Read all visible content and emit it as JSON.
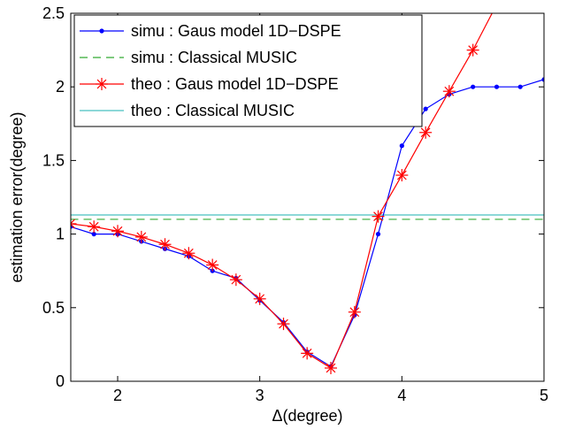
{
  "chart_data": {
    "type": "line",
    "xlabel": "Δ(degree)",
    "ylabel": "estimation error(degree)",
    "xlim": [
      1.67,
      5
    ],
    "ylim": [
      0,
      2.5
    ],
    "x_ticks": [
      "2",
      "3",
      "4",
      "5"
    ],
    "y_ticks": [
      "0",
      "0.5",
      "1",
      "1.5",
      "2",
      "2.5"
    ],
    "grid": false,
    "legend_position": "top-left",
    "series": [
      {
        "name": "simu : Gaus model 1D−DSPE",
        "color": "#0000ff",
        "style": "solid-dot",
        "x": [
          1.667,
          1.833,
          2.0,
          2.167,
          2.333,
          2.5,
          2.667,
          2.833,
          3.0,
          3.167,
          3.333,
          3.5,
          3.667,
          3.833,
          4.0,
          4.167,
          4.333,
          4.5,
          4.667,
          4.833,
          5.0
        ],
        "y": [
          1.05,
          1.0,
          1.0,
          0.95,
          0.9,
          0.85,
          0.75,
          0.7,
          0.55,
          0.4,
          0.2,
          0.1,
          0.45,
          1.0,
          1.6,
          1.85,
          1.95,
          2.0,
          2.0,
          2.0,
          2.05
        ]
      },
      {
        "name": "simu : Classical MUSIC",
        "color": "#33aa33",
        "style": "dashed",
        "x": [
          1.667,
          5.0
        ],
        "y": [
          1.1,
          1.1
        ]
      },
      {
        "name": "theo : Gaus model 1D−DSPE",
        "color": "#ff0000",
        "style": "solid-star",
        "x": [
          1.667,
          1.833,
          2.0,
          2.167,
          2.333,
          2.5,
          2.667,
          2.833,
          3.0,
          3.167,
          3.333,
          3.5,
          3.667,
          3.833,
          4.0,
          4.167,
          4.333,
          4.5,
          4.667
        ],
        "y": [
          1.07,
          1.05,
          1.02,
          0.98,
          0.93,
          0.87,
          0.79,
          0.69,
          0.56,
          0.39,
          0.19,
          0.09,
          0.47,
          1.12,
          1.4,
          1.69,
          1.97,
          2.25,
          2.56
        ]
      },
      {
        "name": "theo : Classical MUSIC",
        "color": "#66cccc",
        "style": "solid",
        "x": [
          1.667,
          5.0
        ],
        "y": [
          1.13,
          1.13
        ]
      }
    ]
  }
}
